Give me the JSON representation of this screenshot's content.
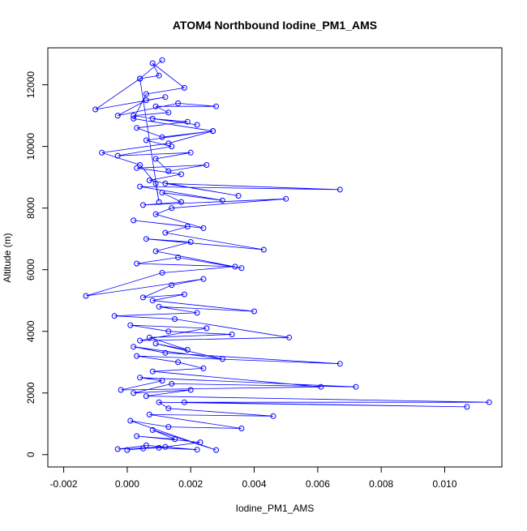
{
  "chart_data": {
    "type": "scatter",
    "title": "ATOM4 Northbound Iodine_PM1_AMS",
    "xlabel": "Iodine_PM1_AMS",
    "ylabel": "Altitude (m)",
    "xlim": [
      -0.0025,
      0.0118
    ],
    "ylim": [
      -400,
      13200
    ],
    "xticks": [
      -0.002,
      0.0,
      0.002,
      0.004,
      0.006,
      0.008,
      0.01
    ],
    "xtick_labels": [
      "-0.002",
      "0.000",
      "0.002",
      "0.004",
      "0.006",
      "0.008",
      "0.010"
    ],
    "yticks": [
      0,
      2000,
      4000,
      6000,
      8000,
      10000,
      12000
    ],
    "ytick_labels": [
      "0",
      "2000",
      "4000",
      "6000",
      "8000",
      "10000",
      "12000"
    ],
    "connected": true,
    "grid": false,
    "legend": "none",
    "colors": {
      "series": "#0000ff",
      "axes": "#000000",
      "background": "#ffffff"
    },
    "series": [
      {
        "x": [
          0.0,
          0.0005,
          0.001,
          0.0022,
          0.0006,
          -0.0003,
          0.0012,
          0.0023,
          0.0003,
          0.0015,
          0.0008,
          0.0028,
          0.0001,
          0.0013,
          0.0036,
          0.0007,
          0.0046,
          0.0013,
          0.001,
          0.0107,
          0.0018,
          0.0114,
          0.0006,
          0.002,
          0.0002,
          0.0014,
          0.0072,
          0.0004,
          0.0011,
          -0.0002,
          0.0061,
          0.0008,
          0.0024,
          0.0016,
          0.0003,
          0.0067,
          0.0012,
          0.0002,
          0.003,
          0.0009,
          0.0019,
          0.0007,
          0.0033,
          0.0013,
          0.0001,
          0.0025,
          0.0004,
          0.0051,
          0.0015,
          -0.0004,
          0.0022,
          0.001,
          0.004,
          0.0008,
          0.0018,
          0.0005,
          0.0014,
          0.0024,
          -0.0013,
          0.0011,
          0.0034,
          0.0003,
          0.0016,
          0.0036,
          0.0009,
          0.002,
          0.0006,
          0.0043,
          0.0012,
          0.0019,
          0.0002,
          0.0024,
          0.0009,
          0.0014,
          0.005,
          0.0005,
          0.0017,
          0.0011,
          0.003,
          0.0004,
          0.0067,
          0.0012,
          0.0035,
          0.0007,
          0.0017,
          0.0003,
          0.0025,
          0.0013,
          0.0009,
          0.002,
          -0.0003,
          0.0014,
          0.0006,
          0.0027,
          0.0011,
          0.0003,
          0.0019,
          0.0008,
          0.0022,
          0.0002,
          0.0013,
          0.0009,
          0.0028,
          0.0016,
          -0.0003,
          0.0006,
          0.0012,
          -0.001,
          0.0004,
          0.001,
          0.0008,
          0.0018,
          0.0006,
          0.0002,
          0.0027,
          0.0013,
          -0.0008,
          0.0004,
          0.0009,
          0.001,
          0.0004,
          0.0011
        ],
        "y": [
          150,
          200,
          220,
          160,
          300,
          180,
          250,
          400,
          600,
          500,
          800,
          150,
          1100,
          900,
          850,
          1300,
          1250,
          1500,
          1700,
          1550,
          1700,
          1700,
          1900,
          2100,
          2000,
          2300,
          2200,
          2500,
          2400,
          2100,
          2200,
          2700,
          2800,
          3000,
          3200,
          2950,
          3300,
          3500,
          3100,
          3600,
          3400,
          3800,
          3900,
          4000,
          4200,
          4100,
          3700,
          3800,
          4400,
          4500,
          4600,
          4800,
          4650,
          5000,
          5200,
          5100,
          5500,
          5700,
          5150,
          5900,
          6100,
          6200,
          6400,
          6050,
          6600,
          6900,
          7000,
          6650,
          7200,
          7400,
          7600,
          7350,
          7800,
          8000,
          8300,
          8100,
          8200,
          8500,
          8250,
          8700,
          8600,
          8800,
          8400,
          8900,
          9100,
          9300,
          9400,
          9200,
          9600,
          9800,
          9700,
          10000,
          10200,
          10500,
          10300,
          10600,
          10800,
          10900,
          10700,
          11000,
          11100,
          11300,
          11300,
          11400,
          11000,
          11500,
          11600,
          11200,
          12200,
          12300,
          12700,
          11900,
          11700,
          10900,
          10500,
          10100,
          9800,
          9400,
          8800,
          8200,
          12200,
          12800
        ]
      }
    ]
  }
}
